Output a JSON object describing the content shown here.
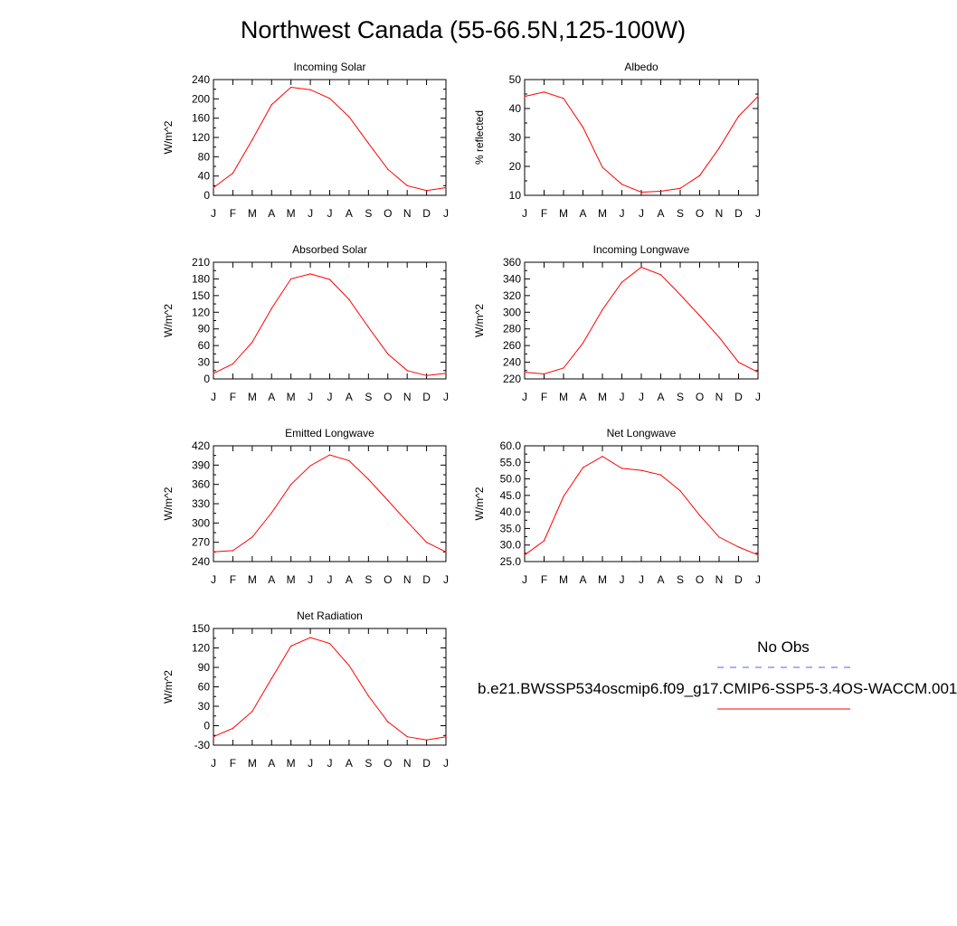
{
  "title": "Northwest Canada (55-66.5N,125-100W)",
  "months": [
    "J",
    "F",
    "M",
    "A",
    "M",
    "J",
    "J",
    "A",
    "S",
    "O",
    "N",
    "D",
    "J"
  ],
  "colors": {
    "model": "#ff0000",
    "obs": "#5a5aff",
    "axis": "#000000"
  },
  "legend": {
    "obs_label": "No Obs",
    "model_label": "b.e21.BWSSP534oscmip6.f09_g17.CMIP6-SSP5-3.4OS-WACCM.001"
  },
  "chart_data": [
    {
      "type": "line",
      "title": "Incoming Solar",
      "ylabel": "W/m^2",
      "ylim": [
        0,
        240
      ],
      "yticks": [
        0,
        40,
        80,
        120,
        160,
        200,
        240
      ],
      "ytick_labels": [
        "0",
        "40",
        "80",
        "120",
        "160",
        "200",
        "240"
      ],
      "series": [
        {
          "values": [
            16,
            46,
            115,
            188,
            224,
            219,
            201,
            163,
            108,
            54,
            20,
            10,
            16
          ]
        }
      ]
    },
    {
      "type": "line",
      "title": "Albedo",
      "ylabel": "% reflected",
      "ylim": [
        10,
        50
      ],
      "yticks": [
        10,
        20,
        30,
        40,
        50
      ],
      "ytick_labels": [
        "10",
        "20",
        "30",
        "40",
        "50"
      ],
      "series": [
        {
          "values": [
            44.2,
            45.7,
            43.5,
            33.5,
            19.7,
            13.8,
            11.1,
            11.4,
            12.4,
            16.8,
            26.3,
            37.3,
            44.2
          ]
        }
      ]
    },
    {
      "type": "line",
      "title": "Absorbed Solar",
      "ylabel": "W/m^2",
      "ylim": [
        0,
        210
      ],
      "yticks": [
        0,
        30,
        60,
        90,
        120,
        150,
        180,
        210
      ],
      "ytick_labels": [
        "0",
        "30",
        "60",
        "90",
        "120",
        "150",
        "180",
        "210"
      ],
      "series": [
        {
          "values": [
            10,
            27,
            66,
            127,
            180,
            189,
            179,
            143,
            93,
            45,
            15,
            6,
            10
          ]
        }
      ]
    },
    {
      "type": "line",
      "title": "Incoming Longwave",
      "ylabel": "W/m^2",
      "ylim": [
        220,
        360
      ],
      "yticks": [
        220,
        240,
        260,
        280,
        300,
        320,
        340,
        360
      ],
      "ytick_labels": [
        "220",
        "240",
        "260",
        "280",
        "300",
        "320",
        "340",
        "360"
      ],
      "series": [
        {
          "values": [
            228,
            226,
            233,
            263,
            303,
            336,
            354,
            345,
            321,
            296,
            270,
            240,
            228
          ]
        }
      ]
    },
    {
      "type": "line",
      "title": "Emitted Longwave",
      "ylabel": "W/m^2",
      "ylim": [
        240,
        420
      ],
      "yticks": [
        240,
        270,
        300,
        330,
        360,
        390,
        420
      ],
      "ytick_labels": [
        "240",
        "270",
        "300",
        "330",
        "360",
        "390",
        "420"
      ],
      "series": [
        {
          "values": [
            255,
            257,
            278,
            316,
            360,
            389,
            406,
            397,
            368,
            335,
            302,
            270,
            255
          ]
        }
      ]
    },
    {
      "type": "line",
      "title": "Net Longwave",
      "ylabel": "W/m^2",
      "ylim": [
        25,
        60
      ],
      "yticks": [
        25,
        30,
        35,
        40,
        45,
        50,
        55,
        60
      ],
      "ytick_labels": [
        "25.0",
        "30.0",
        "35.0",
        "40.0",
        "45.0",
        "50.0",
        "55.0",
        "60.0"
      ],
      "series": [
        {
          "values": [
            27.0,
            31.3,
            44.7,
            53.4,
            56.8,
            53.2,
            52.6,
            51.2,
            46.4,
            39.0,
            32.4,
            29.4,
            27.0
          ]
        }
      ]
    },
    {
      "type": "line",
      "title": "Net Radiation",
      "ylabel": "W/m^2",
      "ylim": [
        -30,
        150
      ],
      "yticks": [
        -30,
        0,
        30,
        60,
        90,
        120,
        150
      ],
      "ytick_labels": [
        "-30",
        "0",
        "30",
        "60",
        "90",
        "120",
        "150"
      ],
      "series": [
        {
          "values": [
            -17,
            -4,
            22,
            73,
            123,
            136,
            127,
            93,
            46,
            6,
            -17,
            -22,
            -17
          ]
        }
      ]
    }
  ]
}
